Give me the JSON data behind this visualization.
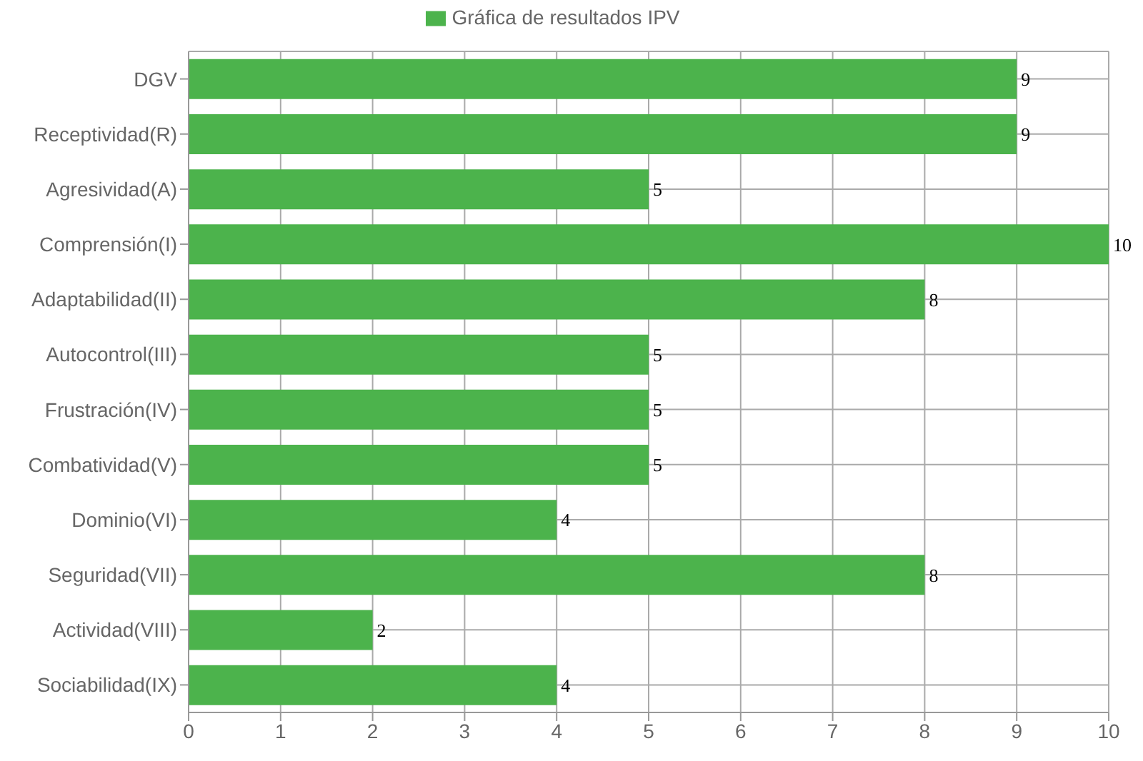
{
  "chart_data": {
    "type": "bar",
    "orientation": "horizontal",
    "categories": [
      "DGV",
      "Receptividad(R)",
      "Agresividad(A)",
      "Comprensión(I)",
      "Adaptabilidad(II)",
      "Autocontrol(III)",
      "Frustración(IV)",
      "Combatividad(V)",
      "Dominio(VI)",
      "Seguridad(VII)",
      "Actividad(VIII)",
      "Sociabilidad(IX)"
    ],
    "series": [
      {
        "name": "Gráfica de resultados IPV",
        "color": "#4cb34c",
        "values": [
          9,
          9,
          5,
          10,
          8,
          5,
          5,
          5,
          4,
          8,
          2,
          4
        ]
      }
    ],
    "xlim": [
      0,
      10
    ],
    "xticks": [
      0,
      1,
      2,
      3,
      4,
      5,
      6,
      7,
      8,
      9,
      10
    ],
    "grid": true,
    "legend": "top",
    "data_labels": true
  }
}
